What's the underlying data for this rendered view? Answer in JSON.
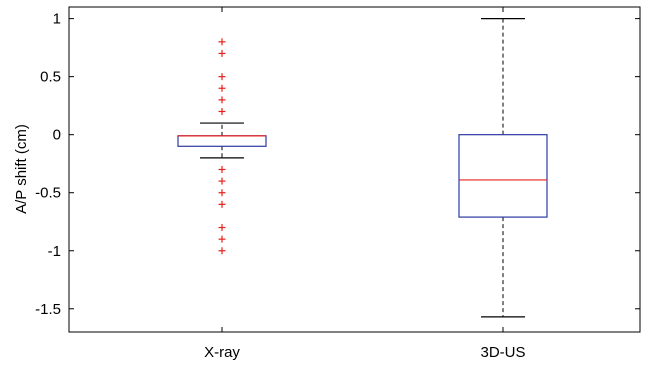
{
  "chart_data": {
    "type": "boxplot",
    "title": "",
    "xlabel": "",
    "ylabel": "A/P shift (cm)",
    "ylim": [
      -1.7,
      1.1
    ],
    "yticks": [
      1,
      0.5,
      0,
      -0.5,
      -1,
      -1.5
    ],
    "ytick_labels": [
      "1",
      "0.5",
      "0",
      "-0.5",
      "-1",
      "-1.5"
    ],
    "grid": false,
    "categories": [
      "X-ray",
      "3D-US"
    ],
    "boxes": [
      {
        "category": "X-ray",
        "q1": -0.1,
        "median": -0.01,
        "q3": -0.01,
        "whisker_low": -0.2,
        "whisker_high": 0.1,
        "outliers": [
          0.8,
          0.7,
          0.5,
          0.4,
          0.3,
          0.2,
          -0.3,
          -0.4,
          -0.5,
          -0.6,
          -0.8,
          -0.9,
          -1.0
        ]
      },
      {
        "category": "3D-US",
        "q1": -0.71,
        "median": -0.39,
        "q3": 0.0,
        "whisker_low": -1.57,
        "whisker_high": 1.0,
        "outliers": []
      }
    ],
    "colors": {
      "box": "#2b3aa3",
      "median": "#e8211b",
      "whisker": "#000000",
      "outlier": "#e8211b",
      "axis": "#000000"
    }
  }
}
